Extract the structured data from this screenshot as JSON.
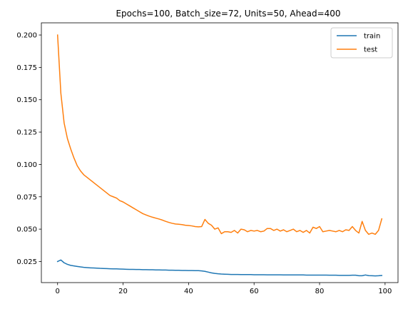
{
  "chart_data": {
    "type": "line",
    "title": "Epochs=100, Batch_size=72, Units=50, Ahead=400",
    "xlabel": "",
    "ylabel": "",
    "xlim": [
      -4.95,
      103.95
    ],
    "ylim": [
      0.0087,
      0.2094
    ],
    "xticks": [
      0,
      20,
      40,
      60,
      80,
      100
    ],
    "xtick_labels": [
      "0",
      "20",
      "40",
      "60",
      "80",
      "100"
    ],
    "yticks": [
      0.025,
      0.05,
      0.075,
      0.1,
      0.125,
      0.15,
      0.175,
      0.2
    ],
    "ytick_labels": [
      "0.025",
      "0.050",
      "0.075",
      "0.100",
      "0.125",
      "0.150",
      "0.175",
      "0.200"
    ],
    "grid": false,
    "legend_position": "top-right",
    "x": [
      0,
      1,
      2,
      3,
      4,
      5,
      6,
      7,
      8,
      9,
      10,
      11,
      12,
      13,
      14,
      15,
      16,
      17,
      18,
      19,
      20,
      21,
      22,
      23,
      24,
      25,
      26,
      27,
      28,
      29,
      30,
      31,
      32,
      33,
      34,
      35,
      36,
      37,
      38,
      39,
      40,
      41,
      42,
      43,
      44,
      45,
      46,
      47,
      48,
      49,
      50,
      51,
      52,
      53,
      54,
      55,
      56,
      57,
      58,
      59,
      60,
      61,
      62,
      63,
      64,
      65,
      66,
      67,
      68,
      69,
      70,
      71,
      72,
      73,
      74,
      75,
      76,
      77,
      78,
      79,
      80,
      81,
      82,
      83,
      84,
      85,
      86,
      87,
      88,
      89,
      90,
      91,
      92,
      93,
      94,
      95,
      96,
      97,
      98,
      99
    ],
    "series": [
      {
        "name": "train",
        "color": "#1f77b4",
        "values": [
          0.025,
          0.0262,
          0.024,
          0.0228,
          0.022,
          0.0216,
          0.0212,
          0.0208,
          0.0205,
          0.0203,
          0.0201,
          0.02,
          0.0199,
          0.0197,
          0.0196,
          0.0195,
          0.0194,
          0.0193,
          0.0193,
          0.0192,
          0.0191,
          0.019,
          0.0189,
          0.0189,
          0.0188,
          0.0188,
          0.0187,
          0.0187,
          0.0186,
          0.0186,
          0.0185,
          0.0185,
          0.0184,
          0.0184,
          0.0183,
          0.0183,
          0.0182,
          0.0182,
          0.0181,
          0.0181,
          0.018,
          0.018,
          0.0179,
          0.0179,
          0.0177,
          0.0174,
          0.0168,
          0.0162,
          0.0158,
          0.0155,
          0.0153,
          0.0152,
          0.0151,
          0.015,
          0.015,
          0.015,
          0.0149,
          0.0149,
          0.0149,
          0.0149,
          0.0148,
          0.0148,
          0.0148,
          0.0148,
          0.0147,
          0.0147,
          0.0147,
          0.0147,
          0.0147,
          0.0146,
          0.0146,
          0.0146,
          0.0146,
          0.0146,
          0.0146,
          0.0146,
          0.0145,
          0.0145,
          0.0145,
          0.0145,
          0.0145,
          0.0145,
          0.0145,
          0.0144,
          0.0144,
          0.0144,
          0.0143,
          0.0143,
          0.0143,
          0.0143,
          0.0144,
          0.0144,
          0.014,
          0.014,
          0.0146,
          0.0141,
          0.014,
          0.0139,
          0.014,
          0.0142
        ]
      },
      {
        "name": "test",
        "color": "#ff7f0e",
        "values": [
          0.2,
          0.155,
          0.132,
          0.12,
          0.112,
          0.105,
          0.099,
          0.095,
          0.092,
          0.09,
          0.088,
          0.086,
          0.084,
          0.082,
          0.08,
          0.078,
          0.076,
          0.075,
          0.074,
          0.072,
          0.071,
          0.0695,
          0.068,
          0.0665,
          0.065,
          0.0635,
          0.062,
          0.061,
          0.06,
          0.0592,
          0.0585,
          0.0578,
          0.057,
          0.056,
          0.0552,
          0.0545,
          0.054,
          0.0538,
          0.0535,
          0.053,
          0.0528,
          0.0525,
          0.052,
          0.0518,
          0.052,
          0.0575,
          0.0545,
          0.053,
          0.05,
          0.051,
          0.0465,
          0.048,
          0.048,
          0.0475,
          0.049,
          0.047,
          0.05,
          0.0495,
          0.048,
          0.049,
          0.0485,
          0.049,
          0.048,
          0.0485,
          0.0505,
          0.0505,
          0.049,
          0.05,
          0.0485,
          0.0495,
          0.048,
          0.049,
          0.05,
          0.048,
          0.049,
          0.0475,
          0.049,
          0.047,
          0.0515,
          0.0505,
          0.052,
          0.048,
          0.0485,
          0.049,
          0.0485,
          0.048,
          0.049,
          0.048,
          0.0495,
          0.049,
          0.052,
          0.049,
          0.047,
          0.056,
          0.049,
          0.046,
          0.047,
          0.046,
          0.049,
          0.058
        ]
      }
    ]
  }
}
